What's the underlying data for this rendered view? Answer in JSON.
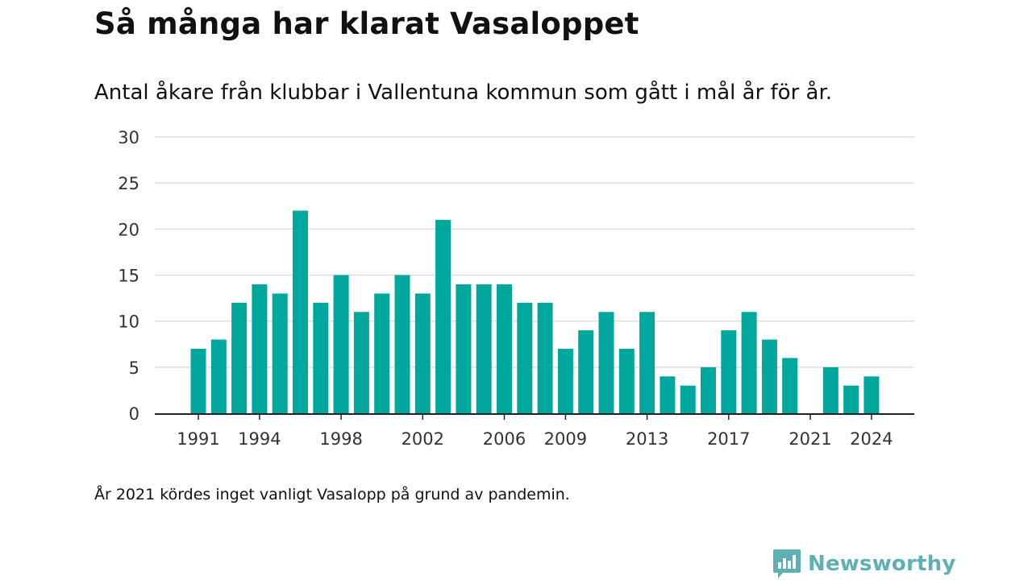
{
  "title": "Så många har klarat Vasaloppet",
  "subtitle": "Antal åkare från klubbar i Vallentuna kommun som gått i mål år för år.",
  "note": "År 2021 kördes inget vanligt Vasalopp på grund av pandemin.",
  "brand": {
    "name": "Newsworthy",
    "icon": "newsworthy-logo-icon",
    "color": "#5eb0b4"
  },
  "colors": {
    "bar": "#00a79d",
    "grid": "#dddddd",
    "axis": "#222222",
    "text": "#333333"
  },
  "chart_data": {
    "type": "bar",
    "title": "Så många har klarat Vasaloppet",
    "subtitle": "Antal åkare från klubbar i Vallentuna kommun som gått i mål år för år.",
    "xlabel": "",
    "ylabel": "",
    "ylim": [
      0,
      30
    ],
    "yticks": [
      0,
      5,
      10,
      15,
      20,
      25,
      30
    ],
    "xticks": [
      1991,
      1994,
      1998,
      2002,
      2006,
      2009,
      2013,
      2017,
      2021,
      2024
    ],
    "grid": true,
    "x": [
      1991,
      1992,
      1993,
      1994,
      1995,
      1996,
      1997,
      1998,
      1999,
      2000,
      2001,
      2002,
      2003,
      2004,
      2005,
      2006,
      2007,
      2008,
      2009,
      2010,
      2011,
      2012,
      2013,
      2014,
      2015,
      2016,
      2017,
      2018,
      2019,
      2020,
      2021,
      2022,
      2023,
      2024
    ],
    "values": [
      7,
      8,
      12,
      14,
      13,
      22,
      12,
      15,
      11,
      13,
      15,
      13,
      21,
      14,
      14,
      14,
      12,
      12,
      7,
      9,
      11,
      7,
      11,
      4,
      3,
      5,
      9,
      11,
      8,
      6,
      0,
      5,
      3,
      4
    ]
  }
}
